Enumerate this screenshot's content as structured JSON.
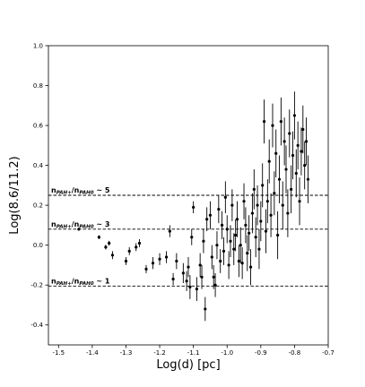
{
  "chart_data": {
    "type": "scatter",
    "xlabel": "Log(d) [pc]",
    "ylabel": "Log(8.6/11.2)",
    "xlim": [
      -1.53,
      -0.7
    ],
    "ylim": [
      -0.5,
      1.0
    ],
    "xticks": [
      "-1.5",
      "-1.4",
      "-1.3",
      "-1.2",
      "-1.1",
      "-1.0",
      "-0.9",
      "-0.8",
      "-0.7"
    ],
    "yticks": [
      "-0.4",
      "-0.2",
      "0.0",
      "0.2",
      "0.4",
      "0.6",
      "0.8",
      "1.0"
    ],
    "grid": false,
    "reference_lines": [
      {
        "y": 0.25,
        "style": "dashed",
        "label_main": "n",
        "label_sub1": "PAH+",
        "label_mid": "/n",
        "label_sub2": "PAH0",
        "label_end": " ~ 5"
      },
      {
        "y": 0.08,
        "style": "dashed",
        "label_main": "n",
        "label_sub1": "PAH+",
        "label_mid": "/n",
        "label_sub2": "PAH0",
        "label_end": " ~ 3"
      },
      {
        "y": -0.205,
        "style": "dashed",
        "label_main": "n",
        "label_sub1": "PAH+",
        "label_mid": "/n",
        "label_sub2": "PAH0",
        "label_end": " ~ 1"
      }
    ],
    "points": [
      {
        "x": -1.44,
        "y": 0.08,
        "err": 0.005
      },
      {
        "x": -1.38,
        "y": 0.04,
        "err": 0.01
      },
      {
        "x": -1.36,
        "y": -0.01,
        "err": 0.012
      },
      {
        "x": -1.35,
        "y": 0.01,
        "err": 0.012
      },
      {
        "x": -1.34,
        "y": -0.05,
        "err": 0.02
      },
      {
        "x": -1.3,
        "y": -0.08,
        "err": 0.02
      },
      {
        "x": -1.29,
        "y": -0.03,
        "err": 0.02
      },
      {
        "x": -1.27,
        "y": -0.01,
        "err": 0.02
      },
      {
        "x": -1.26,
        "y": 0.01,
        "err": 0.02
      },
      {
        "x": -1.24,
        "y": -0.12,
        "err": 0.02
      },
      {
        "x": -1.22,
        "y": -0.09,
        "err": 0.03
      },
      {
        "x": -1.2,
        "y": -0.07,
        "err": 0.03
      },
      {
        "x": -1.18,
        "y": -0.06,
        "err": 0.03
      },
      {
        "x": -1.17,
        "y": 0.07,
        "err": 0.03
      },
      {
        "x": -1.16,
        "y": -0.17,
        "err": 0.03
      },
      {
        "x": -1.15,
        "y": -0.08,
        "err": 0.04
      },
      {
        "x": -1.13,
        "y": -0.14,
        "err": 0.05
      },
      {
        "x": -1.12,
        "y": -0.18,
        "err": 0.05
      },
      {
        "x": -1.115,
        "y": -0.11,
        "err": 0.05
      },
      {
        "x": -1.11,
        "y": -0.21,
        "err": 0.06
      },
      {
        "x": -1.105,
        "y": 0.04,
        "err": 0.04
      },
      {
        "x": -1.1,
        "y": 0.19,
        "err": 0.03
      },
      {
        "x": -1.09,
        "y": -0.22,
        "err": 0.06
      },
      {
        "x": -1.08,
        "y": -0.1,
        "err": 0.06
      },
      {
        "x": -1.075,
        "y": -0.16,
        "err": 0.06
      },
      {
        "x": -1.07,
        "y": 0.02,
        "err": 0.06
      },
      {
        "x": -1.065,
        "y": -0.32,
        "err": 0.06
      },
      {
        "x": -1.06,
        "y": 0.13,
        "err": 0.06
      },
      {
        "x": -1.05,
        "y": 0.15,
        "err": 0.07
      },
      {
        "x": -1.045,
        "y": -0.06,
        "err": 0.06
      },
      {
        "x": -1.04,
        "y": -0.16,
        "err": 0.06
      },
      {
        "x": -1.035,
        "y": -0.2,
        "err": 0.06
      },
      {
        "x": -1.03,
        "y": 0.0,
        "err": 0.07
      },
      {
        "x": -1.025,
        "y": 0.18,
        "err": 0.07
      },
      {
        "x": -1.02,
        "y": -0.08,
        "err": 0.06
      },
      {
        "x": -1.015,
        "y": 0.1,
        "err": 0.07
      },
      {
        "x": -1.01,
        "y": -0.03,
        "err": 0.07
      },
      {
        "x": -1.005,
        "y": 0.24,
        "err": 0.08
      },
      {
        "x": -1.0,
        "y": 0.08,
        "err": 0.07
      },
      {
        "x": -0.995,
        "y": -0.1,
        "err": 0.07
      },
      {
        "x": -0.99,
        "y": 0.02,
        "err": 0.08
      },
      {
        "x": -0.985,
        "y": 0.2,
        "err": 0.08
      },
      {
        "x": -0.98,
        "y": -0.02,
        "err": 0.08
      },
      {
        "x": -0.975,
        "y": 0.05,
        "err": 0.08
      },
      {
        "x": -0.97,
        "y": 0.13,
        "err": 0.09
      },
      {
        "x": -0.965,
        "y": -0.08,
        "err": 0.08
      },
      {
        "x": -0.96,
        "y": 0.0,
        "err": 0.09
      },
      {
        "x": -0.955,
        "y": -0.09,
        "err": 0.08
      },
      {
        "x": -0.95,
        "y": 0.22,
        "err": 0.09
      },
      {
        "x": -0.945,
        "y": 0.1,
        "err": 0.09
      },
      {
        "x": -0.94,
        "y": -0.04,
        "err": 0.09
      },
      {
        "x": -0.935,
        "y": 0.06,
        "err": 0.09
      },
      {
        "x": -0.93,
        "y": -0.11,
        "err": 0.09
      },
      {
        "x": -0.925,
        "y": 0.16,
        "err": 0.1
      },
      {
        "x": -0.92,
        "y": 0.28,
        "err": 0.1
      },
      {
        "x": -0.915,
        "y": 0.04,
        "err": 0.1
      },
      {
        "x": -0.91,
        "y": 0.2,
        "err": 0.1
      },
      {
        "x": -0.905,
        "y": -0.02,
        "err": 0.1
      },
      {
        "x": -0.9,
        "y": 0.12,
        "err": 0.1
      },
      {
        "x": -0.895,
        "y": 0.3,
        "err": 0.11
      },
      {
        "x": -0.89,
        "y": 0.62,
        "err": 0.11
      },
      {
        "x": -0.885,
        "y": 0.07,
        "err": 0.11
      },
      {
        "x": -0.88,
        "y": 0.22,
        "err": 0.11
      },
      {
        "x": -0.875,
        "y": 0.42,
        "err": 0.11
      },
      {
        "x": -0.87,
        "y": 0.15,
        "err": 0.11
      },
      {
        "x": -0.865,
        "y": 0.6,
        "err": 0.11
      },
      {
        "x": -0.86,
        "y": 0.26,
        "err": 0.11
      },
      {
        "x": -0.855,
        "y": 0.46,
        "err": 0.12
      },
      {
        "x": -0.85,
        "y": 0.05,
        "err": 0.12
      },
      {
        "x": -0.845,
        "y": 0.33,
        "err": 0.12
      },
      {
        "x": -0.84,
        "y": 0.62,
        "err": 0.12
      },
      {
        "x": -0.835,
        "y": 0.2,
        "err": 0.12
      },
      {
        "x": -0.83,
        "y": 0.52,
        "err": 0.12
      },
      {
        "x": -0.825,
        "y": 0.38,
        "err": 0.12
      },
      {
        "x": -0.82,
        "y": 0.16,
        "err": 0.12
      },
      {
        "x": -0.815,
        "y": 0.56,
        "err": 0.12
      },
      {
        "x": -0.81,
        "y": 0.28,
        "err": 0.12
      },
      {
        "x": -0.805,
        "y": 0.45,
        "err": 0.12
      },
      {
        "x": -0.8,
        "y": 0.65,
        "err": 0.12
      },
      {
        "x": -0.795,
        "y": 0.36,
        "err": 0.12
      },
      {
        "x": -0.79,
        "y": 0.5,
        "err": 0.12
      },
      {
        "x": -0.785,
        "y": 0.22,
        "err": 0.12
      },
      {
        "x": -0.78,
        "y": 0.47,
        "err": 0.12
      },
      {
        "x": -0.775,
        "y": 0.58,
        "err": 0.12
      },
      {
        "x": -0.77,
        "y": 0.4,
        "err": 0.12
      },
      {
        "x": -0.765,
        "y": 0.52,
        "err": 0.12
      },
      {
        "x": -0.76,
        "y": 0.33,
        "err": 0.12
      }
    ]
  }
}
